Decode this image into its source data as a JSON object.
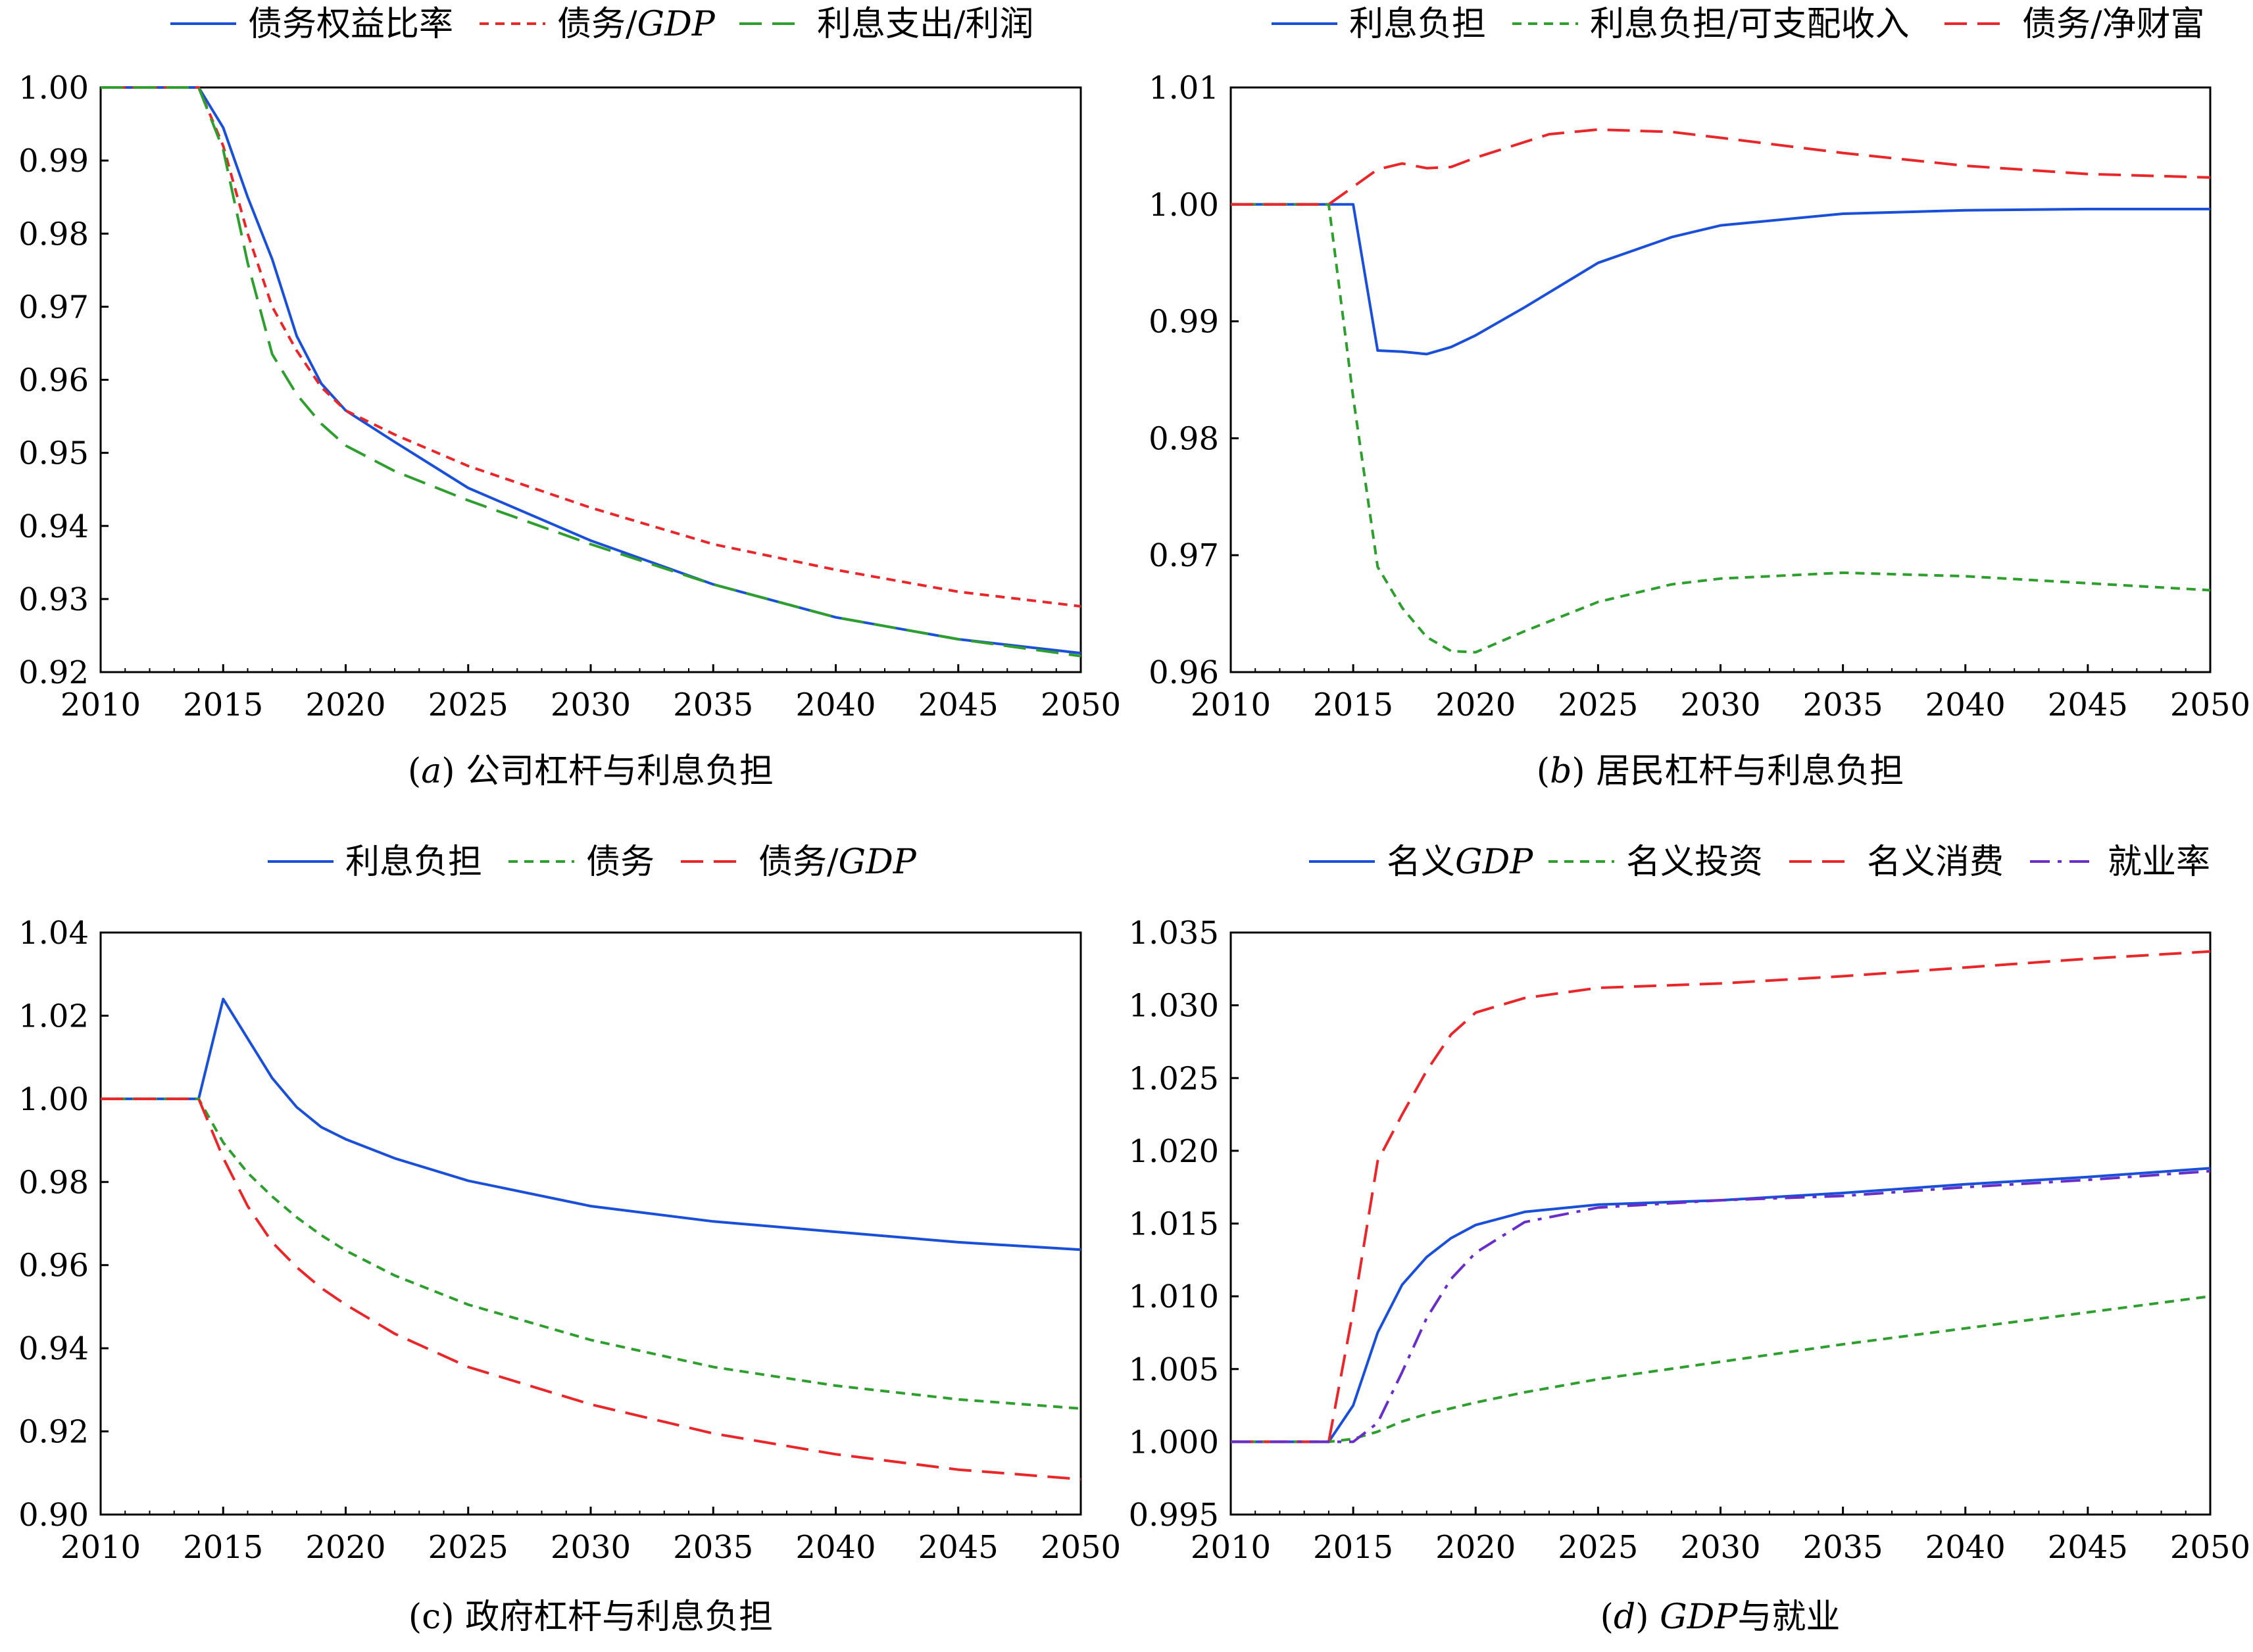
{
  "chart_data": [
    {
      "id": "a",
      "type": "line",
      "caption": {
        "prefix": "(",
        "italic": "a",
        "suffix": ") 公司杠杆与利息负担"
      },
      "xlim": [
        2010,
        2050
      ],
      "ylim": [
        0.92,
        1.0
      ],
      "x_ticks": [
        "2010",
        "2015",
        "2020",
        "2025",
        "2030",
        "2035",
        "2040",
        "2045",
        "2050"
      ],
      "y_ticks": [
        {
          "v": 0.92,
          "label": "0.92"
        },
        {
          "v": 0.93,
          "label": "0.93"
        },
        {
          "v": 0.94,
          "label": "0.94"
        },
        {
          "v": 0.95,
          "label": "0.95"
        },
        {
          "v": 0.96,
          "label": "0.96"
        },
        {
          "v": 0.97,
          "label": "0.97"
        },
        {
          "v": 0.98,
          "label": "0.98"
        },
        {
          "v": 0.99,
          "label": "0.99"
        },
        {
          "v": 1.0,
          "label": "1.00"
        }
      ],
      "series": [
        {
          "name": "债务权益比率",
          "name_italic": "",
          "color": "#1a4fd8",
          "dash": "solid",
          "points": [
            [
              2010,
              1.0
            ],
            [
              2014,
              1.0
            ],
            [
              2015,
              0.9945
            ],
            [
              2016,
              0.985
            ],
            [
              2017,
              0.9765
            ],
            [
              2018,
              0.966
            ],
            [
              2019,
              0.9595
            ],
            [
              2020,
              0.9558
            ],
            [
              2022,
              0.9515
            ],
            [
              2025,
              0.9452
            ],
            [
              2030,
              0.938
            ],
            [
              2035,
              0.932
            ],
            [
              2040,
              0.9275
            ],
            [
              2045,
              0.9245
            ],
            [
              2050,
              0.9226
            ]
          ]
        },
        {
          "name": "债务/",
          "name_italic": "GDP",
          "color": "#e8272a",
          "dash": "short",
          "points": [
            [
              2010,
              1.0
            ],
            [
              2014,
              1.0
            ],
            [
              2015,
              0.992
            ],
            [
              2016,
              0.98
            ],
            [
              2017,
              0.97
            ],
            [
              2018,
              0.964
            ],
            [
              2019,
              0.959
            ],
            [
              2020,
              0.9558
            ],
            [
              2022,
              0.9525
            ],
            [
              2025,
              0.9482
            ],
            [
              2030,
              0.9425
            ],
            [
              2035,
              0.9375
            ],
            [
              2040,
              0.934
            ],
            [
              2045,
              0.931
            ],
            [
              2050,
              0.929
            ]
          ]
        },
        {
          "name": "利息支出/利润",
          "name_italic": "",
          "color": "#2e9e2e",
          "dash": "long",
          "points": [
            [
              2010,
              1.0
            ],
            [
              2014,
              1.0
            ],
            [
              2015,
              0.9915
            ],
            [
              2016,
              0.976
            ],
            [
              2017,
              0.9635
            ],
            [
              2018,
              0.958
            ],
            [
              2019,
              0.954
            ],
            [
              2020,
              0.951
            ],
            [
              2022,
              0.9475
            ],
            [
              2025,
              0.9435
            ],
            [
              2030,
              0.9375
            ],
            [
              2035,
              0.932
            ],
            [
              2040,
              0.9275
            ],
            [
              2045,
              0.9245
            ],
            [
              2050,
              0.9222
            ]
          ]
        }
      ]
    },
    {
      "id": "b",
      "type": "line",
      "caption": {
        "prefix": "(",
        "italic": "b",
        "suffix": ") 居民杠杆与利息负担"
      },
      "xlim": [
        2010,
        2050
      ],
      "ylim": [
        0.96,
        1.01
      ],
      "x_ticks": [
        "2010",
        "2015",
        "2020",
        "2025",
        "2030",
        "2035",
        "2040",
        "2045",
        "2050"
      ],
      "y_ticks": [
        {
          "v": 0.96,
          "label": "0.96"
        },
        {
          "v": 0.97,
          "label": "0.97"
        },
        {
          "v": 0.98,
          "label": "0.98"
        },
        {
          "v": 0.99,
          "label": "0.99"
        },
        {
          "v": 1.0,
          "label": "1.00"
        },
        {
          "v": 1.01,
          "label": "1.01"
        }
      ],
      "series": [
        {
          "name": "利息负担",
          "name_italic": "",
          "color": "#1a4fd8",
          "dash": "solid",
          "points": [
            [
              2010,
              1.0
            ],
            [
              2015,
              1.0
            ],
            [
              2016,
              0.9875
            ],
            [
              2017,
              0.9874
            ],
            [
              2018,
              0.9872
            ],
            [
              2019,
              0.9878
            ],
            [
              2020,
              0.9888
            ],
            [
              2022,
              0.9912
            ],
            [
              2025,
              0.995
            ],
            [
              2028,
              0.9972
            ],
            [
              2030,
              0.9982
            ],
            [
              2035,
              0.9992
            ],
            [
              2040,
              0.9995
            ],
            [
              2045,
              0.9996
            ],
            [
              2050,
              0.9996
            ]
          ]
        },
        {
          "name": "利息负担/可支配收入",
          "name_italic": "",
          "color": "#2e9e2e",
          "dash": "short",
          "points": [
            [
              2010,
              1.0
            ],
            [
              2014,
              1.0
            ],
            [
              2015,
              0.9835
            ],
            [
              2016,
              0.969
            ],
            [
              2017,
              0.9655
            ],
            [
              2018,
              0.963
            ],
            [
              2019,
              0.9618
            ],
            [
              2020,
              0.9617
            ],
            [
              2022,
              0.9635
            ],
            [
              2025,
              0.966
            ],
            [
              2028,
              0.9675
            ],
            [
              2030,
              0.968
            ],
            [
              2035,
              0.9685
            ],
            [
              2040,
              0.9682
            ],
            [
              2045,
              0.9676
            ],
            [
              2050,
              0.967
            ]
          ]
        },
        {
          "name": "债务/净财富",
          "name_italic": "",
          "color": "#e8272a",
          "dash": "long",
          "points": [
            [
              2010,
              1.0
            ],
            [
              2014,
              1.0
            ],
            [
              2015,
              1.0015
            ],
            [
              2016,
              1.003
            ],
            [
              2017,
              1.0035
            ],
            [
              2018,
              1.0031
            ],
            [
              2019,
              1.0032
            ],
            [
              2020,
              1.004
            ],
            [
              2023,
              1.006
            ],
            [
              2025,
              1.0064
            ],
            [
              2028,
              1.0062
            ],
            [
              2030,
              1.0057
            ],
            [
              2035,
              1.0044
            ],
            [
              2040,
              1.0033
            ],
            [
              2045,
              1.0026
            ],
            [
              2050,
              1.0023
            ]
          ]
        }
      ]
    },
    {
      "id": "c",
      "type": "line",
      "caption": {
        "prefix": "(c) 政府杠杆与利息负担",
        "italic": "",
        "suffix": ""
      },
      "xlim": [
        2010,
        2050
      ],
      "ylim": [
        0.9,
        1.04
      ],
      "x_ticks": [
        "2010",
        "2015",
        "2020",
        "2025",
        "2030",
        "2035",
        "2040",
        "2045",
        "2050"
      ],
      "y_ticks": [
        {
          "v": 0.9,
          "label": "0.90"
        },
        {
          "v": 0.92,
          "label": "0.92"
        },
        {
          "v": 0.94,
          "label": "0.94"
        },
        {
          "v": 0.96,
          "label": "0.96"
        },
        {
          "v": 0.98,
          "label": "0.98"
        },
        {
          "v": 1.0,
          "label": "1.00"
        },
        {
          "v": 1.02,
          "label": "1.02"
        },
        {
          "v": 1.04,
          "label": "1.04"
        }
      ],
      "series": [
        {
          "name": "利息负担",
          "name_italic": "",
          "color": "#1a4fd8",
          "dash": "solid",
          "points": [
            [
              2010,
              1.0
            ],
            [
              2014,
              1.0
            ],
            [
              2015,
              1.024
            ],
            [
              2016,
              1.0145
            ],
            [
              2017,
              1.005
            ],
            [
              2018,
              0.998
            ],
            [
              2019,
              0.9932
            ],
            [
              2020,
              0.9903
            ],
            [
              2022,
              0.9857
            ],
            [
              2025,
              0.9803
            ],
            [
              2030,
              0.9742
            ],
            [
              2035,
              0.9705
            ],
            [
              2040,
              0.968
            ],
            [
              2045,
              0.9655
            ],
            [
              2050,
              0.9637
            ]
          ]
        },
        {
          "name": "债务",
          "name_italic": "",
          "color": "#2e9e2e",
          "dash": "short",
          "points": [
            [
              2010,
              1.0
            ],
            [
              2014,
              1.0
            ],
            [
              2015,
              0.9895
            ],
            [
              2016,
              0.9822
            ],
            [
              2017,
              0.9765
            ],
            [
              2018,
              0.9715
            ],
            [
              2019,
              0.9672
            ],
            [
              2020,
              0.9635
            ],
            [
              2022,
              0.9575
            ],
            [
              2025,
              0.9505
            ],
            [
              2030,
              0.942
            ],
            [
              2035,
              0.9355
            ],
            [
              2040,
              0.931
            ],
            [
              2045,
              0.9277
            ],
            [
              2050,
              0.9255
            ]
          ]
        },
        {
          "name": "债务/",
          "name_italic": "GDP",
          "color": "#e8272a",
          "dash": "long",
          "points": [
            [
              2010,
              1.0
            ],
            [
              2014,
              1.0
            ],
            [
              2015,
              0.9858
            ],
            [
              2016,
              0.9742
            ],
            [
              2017,
              0.9655
            ],
            [
              2018,
              0.9595
            ],
            [
              2019,
              0.9545
            ],
            [
              2020,
              0.9505
            ],
            [
              2022,
              0.9435
            ],
            [
              2025,
              0.9355
            ],
            [
              2030,
              0.9265
            ],
            [
              2035,
              0.9195
            ],
            [
              2040,
              0.9145
            ],
            [
              2045,
              0.9108
            ],
            [
              2050,
              0.9085
            ]
          ]
        }
      ]
    },
    {
      "id": "d",
      "type": "line",
      "caption": {
        "prefix": "(",
        "italic": "d",
        "suffix": ") ",
        "italic2": "GDP",
        "suffix2": "与就业"
      },
      "xlim": [
        2010,
        2050
      ],
      "ylim": [
        0.995,
        1.035
      ],
      "x_ticks": [
        "2010",
        "2015",
        "2020",
        "2025",
        "2030",
        "2035",
        "2040",
        "2045",
        "2050"
      ],
      "y_ticks": [
        {
          "v": 0.995,
          "label": "0.995"
        },
        {
          "v": 1.0,
          "label": "1.000"
        },
        {
          "v": 1.005,
          "label": "1.005"
        },
        {
          "v": 1.01,
          "label": "1.010"
        },
        {
          "v": 1.015,
          "label": "1.015"
        },
        {
          "v": 1.02,
          "label": "1.020"
        },
        {
          "v": 1.025,
          "label": "1.025"
        },
        {
          "v": 1.03,
          "label": "1.030"
        },
        {
          "v": 1.035,
          "label": "1.035"
        }
      ],
      "series": [
        {
          "name": "名义",
          "name_italic": "GDP",
          "color": "#1a4fd8",
          "dash": "solid",
          "points": [
            [
              2010,
              1.0
            ],
            [
              2014,
              1.0
            ],
            [
              2015,
              1.0025
            ],
            [
              2016,
              1.0075
            ],
            [
              2017,
              1.0108
            ],
            [
              2018,
              1.0127
            ],
            [
              2019,
              1.014
            ],
            [
              2020,
              1.0149
            ],
            [
              2022,
              1.0158
            ],
            [
              2025,
              1.0163
            ],
            [
              2030,
              1.0166
            ],
            [
              2035,
              1.0171
            ],
            [
              2040,
              1.0177
            ],
            [
              2045,
              1.0182
            ],
            [
              2050,
              1.0188
            ]
          ]
        },
        {
          "name": "名义投资",
          "name_italic": "",
          "color": "#2e9e2e",
          "dash": "short",
          "points": [
            [
              2010,
              1.0
            ],
            [
              2014,
              1.0
            ],
            [
              2015,
              1.0002
            ],
            [
              2016,
              1.0007
            ],
            [
              2017,
              1.0014
            ],
            [
              2018,
              1.0019
            ],
            [
              2019,
              1.0023
            ],
            [
              2020,
              1.0027
            ],
            [
              2022,
              1.0034
            ],
            [
              2025,
              1.0043
            ],
            [
              2030,
              1.0055
            ],
            [
              2035,
              1.0067
            ],
            [
              2040,
              1.0078
            ],
            [
              2045,
              1.0089
            ],
            [
              2050,
              1.01
            ]
          ]
        },
        {
          "name": "名义消费",
          "name_italic": "",
          "color": "#e8272a",
          "dash": "long",
          "points": [
            [
              2010,
              1.0
            ],
            [
              2014,
              1.0
            ],
            [
              2015,
              1.009
            ],
            [
              2016,
              1.0193
            ],
            [
              2017,
              1.0225
            ],
            [
              2018,
              1.0255
            ],
            [
              2019,
              1.028
            ],
            [
              2020,
              1.0295
            ],
            [
              2022,
              1.0305
            ],
            [
              2025,
              1.0312
            ],
            [
              2030,
              1.0315
            ],
            [
              2035,
              1.032
            ],
            [
              2040,
              1.0326
            ],
            [
              2045,
              1.0332
            ],
            [
              2050,
              1.0337
            ]
          ]
        },
        {
          "name": "就业率",
          "name_italic": "",
          "color": "#6a2ec8",
          "dash": "dashdot",
          "points": [
            [
              2010,
              1.0
            ],
            [
              2015,
              1.0
            ],
            [
              2016,
              1.0013
            ],
            [
              2017,
              1.0048
            ],
            [
              2018,
              1.0085
            ],
            [
              2019,
              1.0112
            ],
            [
              2020,
              1.013
            ],
            [
              2022,
              1.0151
            ],
            [
              2025,
              1.0161
            ],
            [
              2030,
              1.0166
            ],
            [
              2035,
              1.0169
            ],
            [
              2040,
              1.0175
            ],
            [
              2045,
              1.018
            ],
            [
              2050,
              1.0186
            ]
          ]
        }
      ]
    }
  ]
}
